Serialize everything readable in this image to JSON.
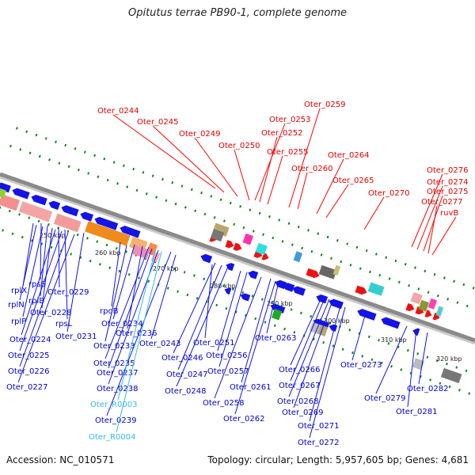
{
  "title": "Opitutus terrae PB90-1, complete genome",
  "footer": {
    "accession": "Accession: NC_010571",
    "topology": "Topology: circular; Length: 5,957,605 bp; Genes: 4,681"
  },
  "colors": {
    "backbone": "#8a8a8a",
    "forward_gene_label": "#e00000",
    "reverse_gene_label": "#0000cc",
    "rna_label": "#33bbee",
    "tick": "#118811"
  },
  "scale_labels": [
    "250 kbp",
    "260 kbp",
    "270 kbp",
    "280 kbp",
    "290 kbp",
    "300 kbp",
    "310 kbp",
    "320 kbp"
  ],
  "red_labels": [
    "Oter_0244",
    "Oter_0245",
    "Oter_0249",
    "Oter_0250",
    "Oter_0253",
    "Oter_0252",
    "Oter_0255",
    "Oter_0259",
    "Oter_0260",
    "Oter_0264",
    "Oter_0265",
    "Oter_0270",
    "Oter_0276",
    "Oter_0274",
    "Oter_0275",
    "Oter_0277",
    "ruvB"
  ],
  "blue_labels": [
    "rplX",
    "rpsS",
    "rplN",
    "rplB",
    "rplP",
    "Oter_0229",
    "Oter_0228",
    "rpsL",
    "Oter_0224",
    "Oter_0231",
    "Oter_0225",
    "Oter_0226",
    "Oter_0227",
    "rpoB",
    "Oter_0234",
    "Oter_0236",
    "Oter_0233",
    "Oter_0235",
    "Oter_0237",
    "Oter_0238",
    "Oter_0239",
    "Oter_0243",
    "Oter_0246",
    "Oter_0247",
    "Oter_0248",
    "Oter_0251",
    "Oter_0256",
    "Oter_0257",
    "Oter_0258",
    "Oter_0261",
    "Oter_0262",
    "Oter_0263",
    "Oter_0266",
    "Oter_0267",
    "Oter_0268",
    "Oter_0269",
    "Oter_0271",
    "Oter_0272",
    "Oter_0273",
    "Oter_0279",
    "Oter_0281",
    "Oter_0282"
  ],
  "cyan_labels": [
    "Oter_R0003",
    "Oter_R0004"
  ]
}
